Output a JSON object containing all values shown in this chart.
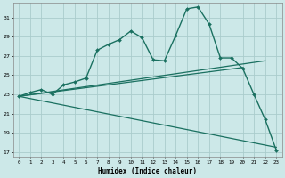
{
  "xlabel": "Humidex (Indice chaleur)",
  "background_color": "#cce8e8",
  "grid_color": "#aacccc",
  "line_color": "#1a7060",
  "xlim": [
    -0.5,
    23.5
  ],
  "ylim": [
    16.5,
    32.5
  ],
  "yticks": [
    17,
    19,
    21,
    23,
    25,
    27,
    29,
    31
  ],
  "xticks": [
    0,
    1,
    2,
    3,
    4,
    5,
    6,
    7,
    8,
    9,
    10,
    11,
    12,
    13,
    14,
    15,
    16,
    17,
    18,
    19,
    20,
    21,
    22,
    23
  ],
  "series_main": {
    "x": [
      0,
      1,
      2,
      3,
      4,
      5,
      6,
      7,
      8,
      9,
      10,
      11,
      12,
      13,
      14,
      15,
      16,
      17,
      18,
      19,
      20,
      21,
      22,
      23
    ],
    "y": [
      22.8,
      23.2,
      23.5,
      23.0,
      24.0,
      24.3,
      24.7,
      27.6,
      28.2,
      28.7,
      29.6,
      28.9,
      26.6,
      26.5,
      29.1,
      31.9,
      32.1,
      30.3,
      26.8,
      26.8,
      25.7,
      23.0,
      20.4,
      17.2
    ]
  },
  "series_line1": {
    "x": [
      0,
      20
    ],
    "y": [
      22.8,
      25.8
    ]
  },
  "series_line2": {
    "x": [
      0,
      22
    ],
    "y": [
      22.8,
      26.5
    ]
  },
  "series_line3": {
    "x": [
      0,
      23
    ],
    "y": [
      22.8,
      17.5
    ]
  }
}
